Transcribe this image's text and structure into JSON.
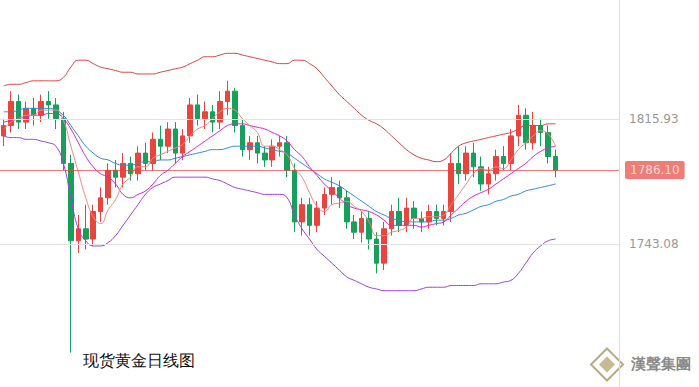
{
  "chart_data": {
    "type": "candlestick",
    "title": "现货黄金日线图",
    "annotations": [
      "漢聲集團"
    ],
    "ylim": [
      1660,
      1885
    ],
    "yticks": [
      1743.08,
      1815.93
    ],
    "grid": true,
    "tick_labels": "y",
    "price_line": {
      "value": 1786.1,
      "label": "1786.10",
      "color": "#e8453c"
    },
    "series": [
      {
        "type": "candlestick",
        "color": {
          "up": "#e8453c",
          "down": "#16a05a"
        },
        "values": [
          [
            1806,
            1812,
            1800,
            1816
          ],
          [
            1812,
            1826,
            1808,
            1832
          ],
          [
            1826,
            1814,
            1810,
            1830
          ],
          [
            1814,
            1822,
            1810,
            1826
          ],
          [
            1822,
            1818,
            1812,
            1828
          ],
          [
            1818,
            1826,
            1814,
            1830
          ],
          [
            1826,
            1824,
            1816,
            1832
          ],
          [
            1824,
            1816,
            1810,
            1828
          ],
          [
            1816,
            1790,
            1786,
            1820
          ],
          [
            1790,
            1745,
            1680,
            1795
          ],
          [
            1745,
            1752,
            1738,
            1760
          ],
          [
            1752,
            1746,
            1740,
            1766
          ],
          [
            1746,
            1762,
            1742,
            1766
          ],
          [
            1762,
            1770,
            1756,
            1776
          ],
          [
            1770,
            1786,
            1766,
            1790
          ],
          [
            1786,
            1782,
            1776,
            1792
          ],
          [
            1782,
            1790,
            1776,
            1796
          ],
          [
            1790,
            1784,
            1780,
            1794
          ],
          [
            1784,
            1796,
            1780,
            1800
          ],
          [
            1796,
            1790,
            1786,
            1802
          ],
          [
            1790,
            1804,
            1786,
            1808
          ],
          [
            1804,
            1800,
            1792,
            1812
          ],
          [
            1800,
            1810,
            1796,
            1814
          ],
          [
            1810,
            1796,
            1790,
            1814
          ],
          [
            1796,
            1806,
            1792,
            1810
          ],
          [
            1806,
            1824,
            1802,
            1828
          ],
          [
            1824,
            1816,
            1812,
            1830
          ],
          [
            1816,
            1820,
            1810,
            1826
          ],
          [
            1820,
            1814,
            1808,
            1824
          ],
          [
            1814,
            1826,
            1810,
            1832
          ],
          [
            1826,
            1832,
            1818,
            1838
          ],
          [
            1832,
            1812,
            1808,
            1834
          ],
          [
            1812,
            1798,
            1794,
            1816
          ],
          [
            1798,
            1802,
            1792,
            1806
          ],
          [
            1802,
            1796,
            1790,
            1806
          ],
          [
            1796,
            1792,
            1788,
            1800
          ],
          [
            1792,
            1800,
            1788,
            1804
          ],
          [
            1800,
            1802,
            1794,
            1806
          ],
          [
            1802,
            1786,
            1782,
            1806
          ],
          [
            1786,
            1756,
            1750,
            1790
          ],
          [
            1756,
            1766,
            1748,
            1770
          ],
          [
            1766,
            1754,
            1748,
            1770
          ],
          [
            1754,
            1764,
            1750,
            1768
          ],
          [
            1764,
            1772,
            1760,
            1776
          ],
          [
            1772,
            1776,
            1766,
            1782
          ],
          [
            1776,
            1770,
            1764,
            1780
          ],
          [
            1770,
            1756,
            1752,
            1774
          ],
          [
            1756,
            1750,
            1746,
            1760
          ],
          [
            1750,
            1758,
            1744,
            1762
          ],
          [
            1758,
            1746,
            1740,
            1762
          ],
          [
            1746,
            1732,
            1726,
            1750
          ],
          [
            1732,
            1752,
            1728,
            1756
          ],
          [
            1752,
            1762,
            1748,
            1766
          ],
          [
            1762,
            1754,
            1750,
            1770
          ],
          [
            1754,
            1764,
            1750,
            1770
          ],
          [
            1764,
            1758,
            1752,
            1768
          ],
          [
            1758,
            1756,
            1750,
            1762
          ],
          [
            1756,
            1762,
            1752,
            1766
          ],
          [
            1762,
            1758,
            1754,
            1766
          ],
          [
            1758,
            1762,
            1754,
            1766
          ],
          [
            1762,
            1790,
            1756,
            1796
          ],
          [
            1790,
            1784,
            1778,
            1800
          ],
          [
            1784,
            1796,
            1780,
            1800
          ],
          [
            1796,
            1788,
            1782,
            1802
          ],
          [
            1788,
            1778,
            1774,
            1794
          ],
          [
            1778,
            1784,
            1772,
            1788
          ],
          [
            1784,
            1794,
            1780,
            1798
          ],
          [
            1794,
            1790,
            1786,
            1800
          ],
          [
            1790,
            1806,
            1786,
            1810
          ],
          [
            1806,
            1818,
            1800,
            1824
          ],
          [
            1818,
            1802,
            1798,
            1822
          ],
          [
            1802,
            1812,
            1798,
            1820
          ],
          [
            1812,
            1808,
            1800,
            1816
          ],
          [
            1808,
            1794,
            1790,
            1812
          ],
          [
            1794,
            1786.1,
            1782,
            1798
          ]
        ]
      },
      {
        "type": "line",
        "color": "#d9433d",
        "values": [
          1835,
          1836,
          1836,
          1837,
          1838,
          1838,
          1838,
          1838,
          1840,
          1846,
          1850,
          1850,
          1848,
          1846,
          1845,
          1844,
          1843,
          1843,
          1842,
          1842,
          1842,
          1843,
          1844,
          1845,
          1846,
          1848,
          1850,
          1852,
          1852,
          1853,
          1854,
          1854,
          1853,
          1852,
          1851,
          1850,
          1849,
          1848,
          1848,
          1850,
          1850,
          1848,
          1845,
          1840,
          1835,
          1830,
          1826,
          1822,
          1818,
          1815,
          1813,
          1810,
          1806,
          1802,
          1798,
          1795,
          1793,
          1792,
          1791,
          1792,
          1796,
          1800,
          1802,
          1803,
          1804,
          1805,
          1806,
          1807,
          1808,
          1810,
          1812,
          1812,
          1812,
          1813,
          1813
        ]
      },
      {
        "type": "line",
        "color": "#a040e0",
        "values": [
          1806,
          1805,
          1805,
          1804,
          1804,
          1803,
          1802,
          1800,
          1790,
          1770,
          1752,
          1745,
          1742,
          1742,
          1744,
          1748,
          1754,
          1760,
          1766,
          1772,
          1776,
          1778,
          1780,
          1782,
          1782,
          1782,
          1782,
          1782,
          1781,
          1780,
          1778,
          1776,
          1775,
          1774,
          1773,
          1772,
          1772,
          1772,
          1770,
          1760,
          1752,
          1746,
          1740,
          1736,
          1732,
          1728,
          1724,
          1722,
          1720,
          1718,
          1717,
          1716,
          1716,
          1716,
          1716,
          1716,
          1717,
          1718,
          1718,
          1718,
          1719,
          1719,
          1719,
          1719,
          1720,
          1720,
          1720,
          1721,
          1722,
          1726,
          1732,
          1738,
          1742,
          1745,
          1746
        ]
      },
      {
        "type": "line",
        "color": "#2d8ae0",
        "values": [
          1820,
          1820,
          1821,
          1822,
          1822,
          1822,
          1822,
          1821,
          1818,
          1812,
          1806,
          1800,
          1796,
          1793,
          1792,
          1790,
          1789,
          1789,
          1790,
          1791,
          1791,
          1792,
          1792,
          1793,
          1794,
          1795,
          1796,
          1797,
          1798,
          1798,
          1799,
          1800,
          1800,
          1800,
          1800,
          1799,
          1798,
          1797,
          1796,
          1793,
          1790,
          1787,
          1784,
          1781,
          1779,
          1777,
          1774,
          1771,
          1768,
          1765,
          1762,
          1760,
          1758,
          1757,
          1756,
          1756,
          1756,
          1756,
          1757,
          1757,
          1758,
          1760,
          1761,
          1763,
          1765,
          1766,
          1768,
          1769,
          1771,
          1772,
          1774,
          1775,
          1776,
          1777,
          1778
        ]
      },
      {
        "type": "line",
        "color": "#e020d8",
        "values": [
          1814,
          1815,
          1816,
          1817,
          1818,
          1818,
          1819,
          1819,
          1816,
          1810,
          1802,
          1794,
          1788,
          1784,
          1782,
          1778,
          1772,
          1770,
          1772,
          1774,
          1778,
          1783,
          1786,
          1790,
          1794,
          1797,
          1800,
          1803,
          1806,
          1809,
          1812,
          1813,
          1813,
          1812,
          1811,
          1810,
          1808,
          1806,
          1803,
          1798,
          1794,
          1788,
          1783,
          1778,
          1774,
          1770,
          1766,
          1764,
          1763,
          1762,
          1760,
          1757,
          1754,
          1754,
          1754,
          1754,
          1753,
          1754,
          1755,
          1756,
          1760,
          1764,
          1768,
          1771,
          1773,
          1775,
          1778,
          1781,
          1784,
          1787,
          1790,
          1794,
          1797,
          1799,
          1800
        ]
      },
      {
        "type": "line",
        "color": "#f08a80",
        "values": [
          1810,
          1814,
          1816,
          1818,
          1818,
          1821,
          1821,
          1821,
          1815,
          1800,
          1785,
          1770,
          1759,
          1755,
          1763,
          1769,
          1778,
          1782,
          1788,
          1788,
          1793,
          1795,
          1797,
          1799,
          1801,
          1806,
          1810,
          1812,
          1816,
          1820,
          1822,
          1821,
          1816,
          1812,
          1808,
          1800,
          1800,
          1798,
          1795,
          1787,
          1782,
          1773,
          1765,
          1762,
          1766,
          1767,
          1768,
          1765,
          1762,
          1756,
          1748,
          1748,
          1750,
          1751,
          1753,
          1758,
          1758,
          1759,
          1759,
          1760,
          1766,
          1772,
          1778,
          1784,
          1787,
          1786,
          1788,
          1787,
          1792,
          1798,
          1802,
          1806,
          1809,
          1807,
          1800
        ]
      }
    ]
  }
}
